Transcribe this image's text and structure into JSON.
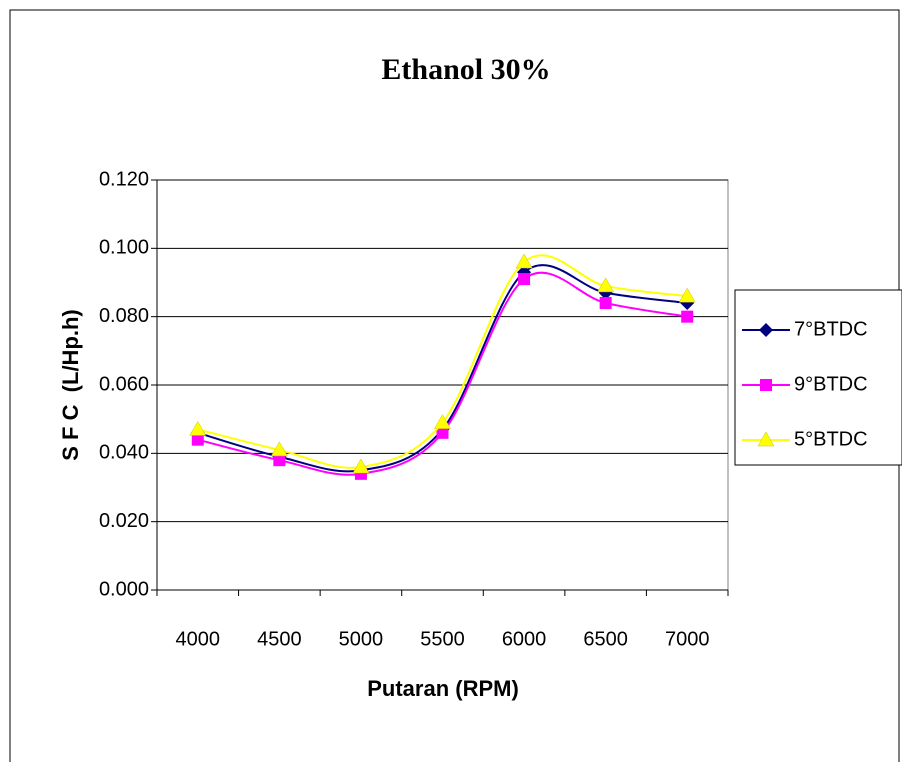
{
  "chart_data": {
    "type": "line",
    "title": "Ethanol 30%",
    "x_label": "Putaran (RPM)",
    "y_label": "S F C  (L/Hp.h)",
    "categories": [
      "4000",
      "4500",
      "5000",
      "5500",
      "6000",
      "6500",
      "7000"
    ],
    "series": [
      {
        "name": "7°BTDC",
        "color": "#000080",
        "marker": "diamond",
        "values": [
          0.046,
          0.039,
          0.035,
          0.047,
          0.093,
          0.087,
          0.084
        ]
      },
      {
        "name": "9°BTDC",
        "color": "#ff00ff",
        "marker": "square",
        "values": [
          0.044,
          0.038,
          0.034,
          0.046,
          0.091,
          0.084,
          0.08
        ]
      },
      {
        "name": "5°BTDC",
        "color": "#ffff00",
        "marker": "triangle",
        "values": [
          0.047,
          0.041,
          0.036,
          0.049,
          0.096,
          0.089,
          0.086
        ]
      }
    ],
    "ylim": [
      0,
      0.12
    ],
    "yticks": [
      {
        "value": 0,
        "label": "0.000"
      },
      {
        "value": 0.02,
        "label": "0.020"
      },
      {
        "value": 0.04,
        "label": "0.040"
      },
      {
        "value": 0.06,
        "label": "0.060"
      },
      {
        "value": 0.08,
        "label": "0.080"
      },
      {
        "value": 0.1,
        "label": "0.100"
      },
      {
        "value": 0.12,
        "label": "0.120"
      }
    ],
    "grid": true,
    "legend": "right"
  }
}
